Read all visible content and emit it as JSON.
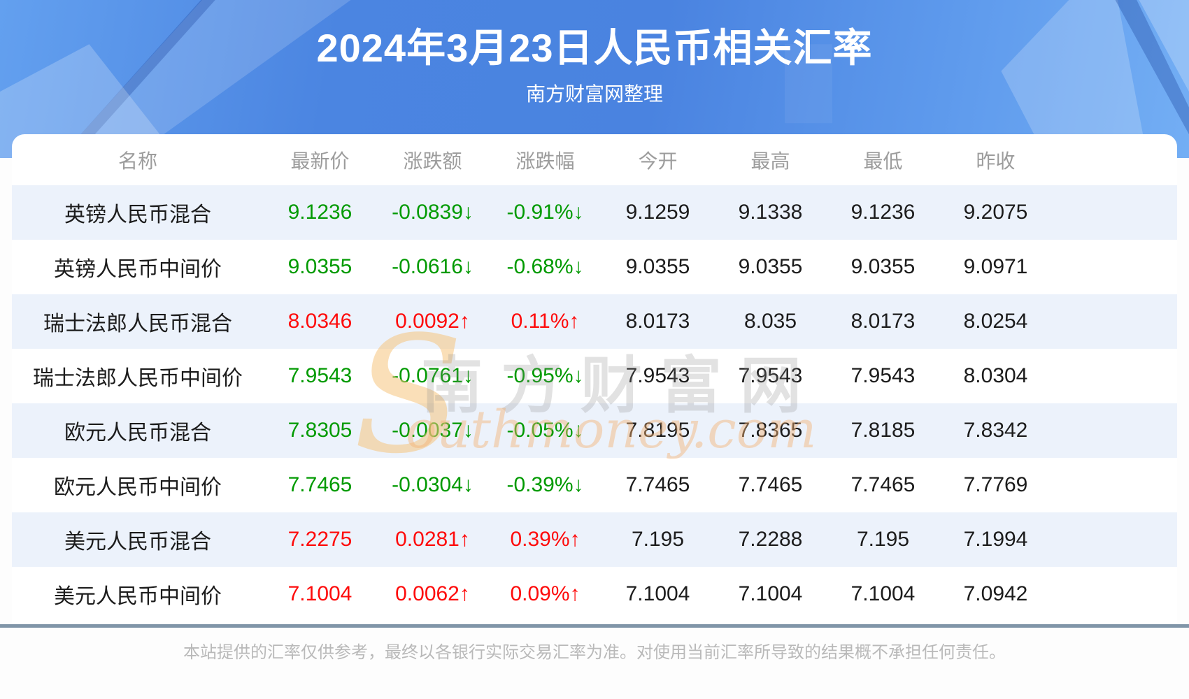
{
  "header": {
    "title": "2024年3月23日人民币相关汇率",
    "subtitle": "南方财富网整理"
  },
  "table": {
    "columns": [
      "名称",
      "最新价",
      "涨跌额",
      "涨跌幅",
      "今开",
      "最高",
      "最低",
      "昨收"
    ],
    "rows": [
      {
        "name": "英镑人民币混合",
        "latest": "9.1236",
        "change": "-0.0839↓",
        "change_pct": "-0.91%↓",
        "open": "9.1259",
        "high": "9.1338",
        "low": "9.1236",
        "prev_close": "9.2075",
        "trend": "down"
      },
      {
        "name": "英镑人民币中间价",
        "latest": "9.0355",
        "change": "-0.0616↓",
        "change_pct": "-0.68%↓",
        "open": "9.0355",
        "high": "9.0355",
        "low": "9.0355",
        "prev_close": "9.0971",
        "trend": "down"
      },
      {
        "name": "瑞士法郎人民币混合",
        "latest": "8.0346",
        "change": "0.0092↑",
        "change_pct": "0.11%↑",
        "open": "8.0173",
        "high": "8.035",
        "low": "8.0173",
        "prev_close": "8.0254",
        "trend": "up"
      },
      {
        "name": "瑞士法郎人民币中间价",
        "latest": "7.9543",
        "change": "-0.0761↓",
        "change_pct": "-0.95%↓",
        "open": "7.9543",
        "high": "7.9543",
        "low": "7.9543",
        "prev_close": "8.0304",
        "trend": "down"
      },
      {
        "name": "欧元人民币混合",
        "latest": "7.8305",
        "change": "-0.0037↓",
        "change_pct": "-0.05%↓",
        "open": "7.8195",
        "high": "7.8365",
        "low": "7.8185",
        "prev_close": "7.8342",
        "trend": "down"
      },
      {
        "name": "欧元人民币中间价",
        "latest": "7.7465",
        "change": "-0.0304↓",
        "change_pct": "-0.39%↓",
        "open": "7.7465",
        "high": "7.7465",
        "low": "7.7465",
        "prev_close": "7.7769",
        "trend": "down"
      },
      {
        "name": "美元人民币混合",
        "latest": "7.2275",
        "change": "0.0281↑",
        "change_pct": "0.39%↑",
        "open": "7.195",
        "high": "7.2288",
        "low": "7.195",
        "prev_close": "7.1994",
        "trend": "up"
      },
      {
        "name": "美元人民币中间价",
        "latest": "7.1004",
        "change": "0.0062↑",
        "change_pct": "0.09%↑",
        "open": "7.1004",
        "high": "7.1004",
        "low": "7.1004",
        "prev_close": "7.0942",
        "trend": "up"
      }
    ]
  },
  "watermark": {
    "s": "S",
    "cn": "南方财富网",
    "en": "outhmoney.com"
  },
  "footer": {
    "disclaimer": "本站提供的汇率仅供参考，最终以各银行实际交易汇率为准。对使用当前汇率所导致的结果概不承担任何责任。"
  },
  "colors": {
    "up": "#fe0b0b",
    "down": "#019a01",
    "banner_blue": "#4a83e0",
    "row_alt_bg": "#ecf2fb",
    "divider": "#8095a8"
  }
}
